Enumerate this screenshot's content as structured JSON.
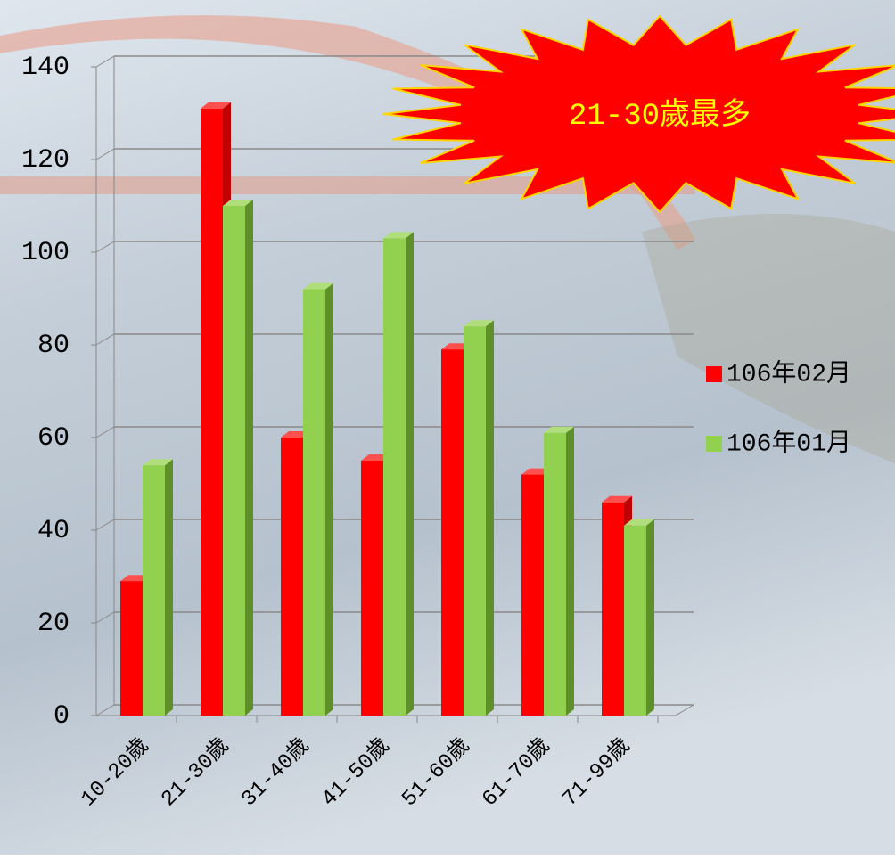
{
  "chart_data": {
    "type": "bar3d",
    "annotation": "21-30歲最多",
    "categories": [
      "10-20歲",
      "21-30歲",
      "31-40歲",
      "41-50歲",
      "51-60歲",
      "61-70歲",
      "71-99歲"
    ],
    "series": [
      {
        "name": "106年02月",
        "color": "#ff0000",
        "values": [
          29,
          131,
          60,
          55,
          79,
          52,
          46
        ]
      },
      {
        "name": "106年01月",
        "color": "#92d050",
        "values": [
          54,
          110,
          92,
          103,
          84,
          61,
          41
        ]
      }
    ],
    "ylim": [
      0,
      140
    ],
    "yticks": [
      0,
      20,
      40,
      60,
      80,
      100,
      120,
      140
    ],
    "grid": true,
    "legend": "right"
  }
}
